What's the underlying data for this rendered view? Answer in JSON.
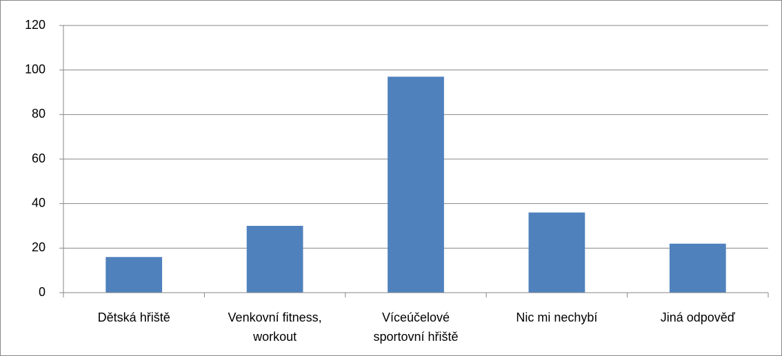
{
  "chart_data": {
    "type": "bar",
    "categories": [
      "Dětská hřiště",
      "Venkovní fitness, workout",
      "Víceúčelové sportovní hřiště",
      "Nic mi nechybí",
      "Jiná odpověď"
    ],
    "values": [
      16,
      30,
      97,
      36,
      22
    ],
    "color": "#4f81bd",
    "ylim": [
      0,
      120
    ],
    "yticks": [
      0,
      20,
      40,
      60,
      80,
      100,
      120
    ],
    "grid": true
  }
}
